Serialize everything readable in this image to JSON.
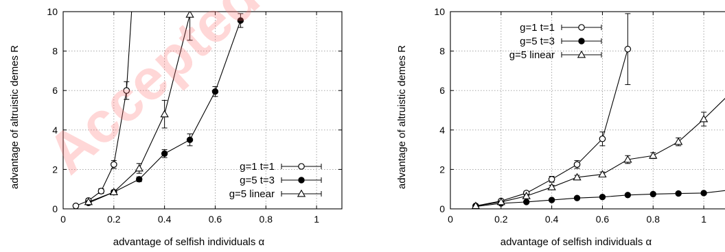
{
  "watermark": {
    "text": "Accepted",
    "color": "#ff6f6f"
  },
  "chart_data": [
    {
      "type": "line",
      "panel": "left",
      "xlabel": "advantage of selfish individuals α",
      "ylabel": "advantage of altruistic demes R",
      "xlim": [
        0,
        1.1
      ],
      "ylim": [
        0,
        10
      ],
      "xticks": [
        0,
        0.2,
        0.4,
        0.6,
        0.8,
        1
      ],
      "yticks": [
        0,
        2,
        4,
        6,
        8,
        10
      ],
      "xtick_labels": [
        "0",
        "0.2",
        "0.4",
        "0.6",
        "0.8",
        "1"
      ],
      "ytick_labels": [
        "0",
        "2",
        "4",
        "6",
        "8",
        "10"
      ],
      "grid": true,
      "legend_position": "bottom-right",
      "series": [
        {
          "name": "g=1 t=1",
          "marker": "open-circle",
          "x": [
            0.05,
            0.1,
            0.15,
            0.2,
            0.25,
            0.27
          ],
          "y": [
            0.15,
            0.42,
            0.9,
            2.25,
            6.0,
            10.0
          ],
          "err": [
            0.05,
            0.1,
            0.12,
            0.2,
            0.45,
            0
          ],
          "marked": [
            true,
            true,
            true,
            true,
            true,
            false
          ]
        },
        {
          "name": "g=5 t=3",
          "marker": "filled-circle",
          "x": [
            0.1,
            0.2,
            0.3,
            0.4,
            0.5,
            0.6,
            0.7
          ],
          "y": [
            0.3,
            0.85,
            1.5,
            2.8,
            3.5,
            5.95,
            9.55
          ],
          "err": [
            0.05,
            0.1,
            0.12,
            0.2,
            0.3,
            0.25,
            0.35
          ],
          "marked": [
            true,
            true,
            true,
            true,
            true,
            true,
            true
          ]
        },
        {
          "name": "g=5 linear",
          "marker": "open-triangle",
          "x": [
            0.1,
            0.2,
            0.3,
            0.4,
            0.5
          ],
          "y": [
            0.35,
            0.85,
            2.05,
            4.8,
            9.85
          ],
          "err": [
            0.05,
            0.1,
            0.25,
            0.7,
            1.3
          ],
          "marked": [
            true,
            true,
            true,
            true,
            true
          ]
        }
      ]
    },
    {
      "type": "line",
      "panel": "right",
      "xlabel": "advantage of selfish individuals α",
      "ylabel": "advantage of altruistic demes R",
      "xlim": [
        0,
        1.1
      ],
      "ylim": [
        0,
        10
      ],
      "xticks": [
        0,
        0.2,
        0.4,
        0.6,
        0.8,
        1
      ],
      "yticks": [
        0,
        2,
        4,
        6,
        8,
        10
      ],
      "xtick_labels": [
        "0",
        "0.2",
        "0.4",
        "0.6",
        "0.8",
        "1"
      ],
      "ytick_labels": [
        "0",
        "2",
        "4",
        "6",
        "8",
        "10"
      ],
      "grid": true,
      "legend_position": "top-left",
      "series": [
        {
          "name": "g=1 t=1",
          "marker": "open-circle",
          "x": [
            0.1,
            0.2,
            0.3,
            0.4,
            0.5,
            0.6,
            0.7
          ],
          "y": [
            0.15,
            0.4,
            0.8,
            1.5,
            2.25,
            3.55,
            8.1
          ],
          "err": [
            0.03,
            0.08,
            0.1,
            0.15,
            0.2,
            0.35,
            1.8
          ],
          "marked": [
            true,
            true,
            true,
            true,
            true,
            true,
            true
          ]
        },
        {
          "name": "g=5 t=3",
          "marker": "filled-circle",
          "x": [
            0.1,
            0.2,
            0.3,
            0.4,
            0.5,
            0.6,
            0.7,
            0.8,
            0.9,
            1.0,
            1.1
          ],
          "y": [
            0.12,
            0.28,
            0.35,
            0.45,
            0.55,
            0.6,
            0.7,
            0.75,
            0.78,
            0.8,
            0.95
          ],
          "err": [
            0.02,
            0.03,
            0.03,
            0.04,
            0.04,
            0.04,
            0.05,
            0.05,
            0.05,
            0.05,
            0.05
          ],
          "marked": [
            true,
            true,
            true,
            true,
            true,
            true,
            true,
            true,
            true,
            true,
            false
          ]
        },
        {
          "name": "g=5 linear",
          "marker": "open-triangle",
          "x": [
            0.1,
            0.2,
            0.3,
            0.4,
            0.5,
            0.6,
            0.7,
            0.8,
            0.9,
            1.0,
            1.1
          ],
          "y": [
            0.15,
            0.35,
            0.65,
            1.1,
            1.6,
            1.75,
            2.5,
            2.7,
            3.4,
            4.55,
            5.8
          ],
          "err": [
            0.03,
            0.05,
            0.08,
            0.1,
            0.1,
            0.12,
            0.2,
            0.15,
            0.2,
            0.35,
            0.3
          ],
          "marked": [
            true,
            true,
            true,
            true,
            true,
            true,
            true,
            true,
            true,
            true,
            false
          ]
        }
      ]
    }
  ]
}
